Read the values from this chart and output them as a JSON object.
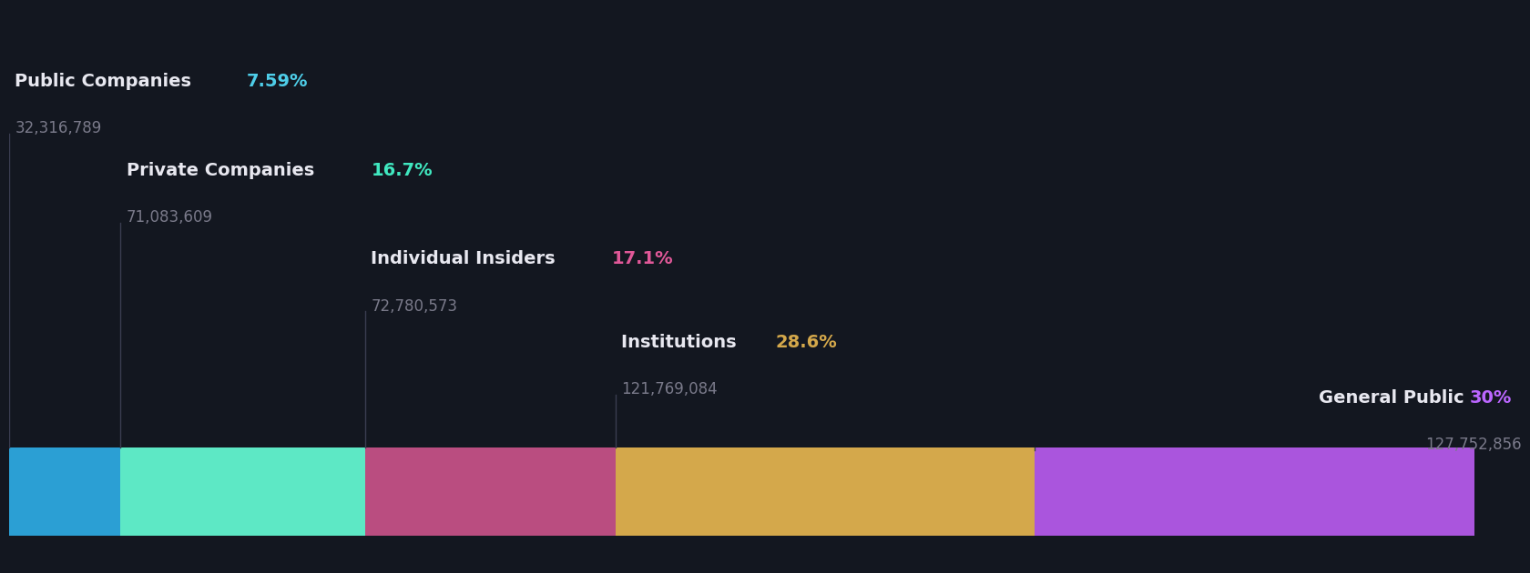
{
  "background_color": "#131720",
  "segments": [
    {
      "label": "Public Companies",
      "pct": "7.59%",
      "shares": "32,316,789",
      "value": 7.59,
      "color": "#2b9fd4",
      "pct_color": "#4ecde8",
      "label_level": 4,
      "text_align": "left"
    },
    {
      "label": "Private Companies",
      "pct": "16.7%",
      "shares": "71,083,609",
      "value": 16.7,
      "color": "#5de8c5",
      "pct_color": "#40e8c0",
      "label_level": 3,
      "text_align": "left"
    },
    {
      "label": "Individual Insiders",
      "pct": "17.1%",
      "shares": "72,780,573",
      "value": 17.1,
      "color": "#ba4d80",
      "pct_color": "#e05898",
      "label_level": 2,
      "text_align": "left"
    },
    {
      "label": "Institutions",
      "pct": "28.6%",
      "shares": "121,769,084",
      "value": 28.6,
      "color": "#d4a84b",
      "pct_color": "#d4a84b",
      "label_level": 1,
      "text_align": "left"
    },
    {
      "label": "General Public",
      "pct": "30%",
      "shares": "127,752,856",
      "value": 30.0,
      "color": "#aa55dd",
      "pct_color": "#bb66ff",
      "label_level": 0,
      "text_align": "right"
    }
  ],
  "white_color": "#e8e8f0",
  "gray_color": "#7a7a8a",
  "label_fontsize": 14,
  "pct_fontsize": 14,
  "shares_fontsize": 12
}
